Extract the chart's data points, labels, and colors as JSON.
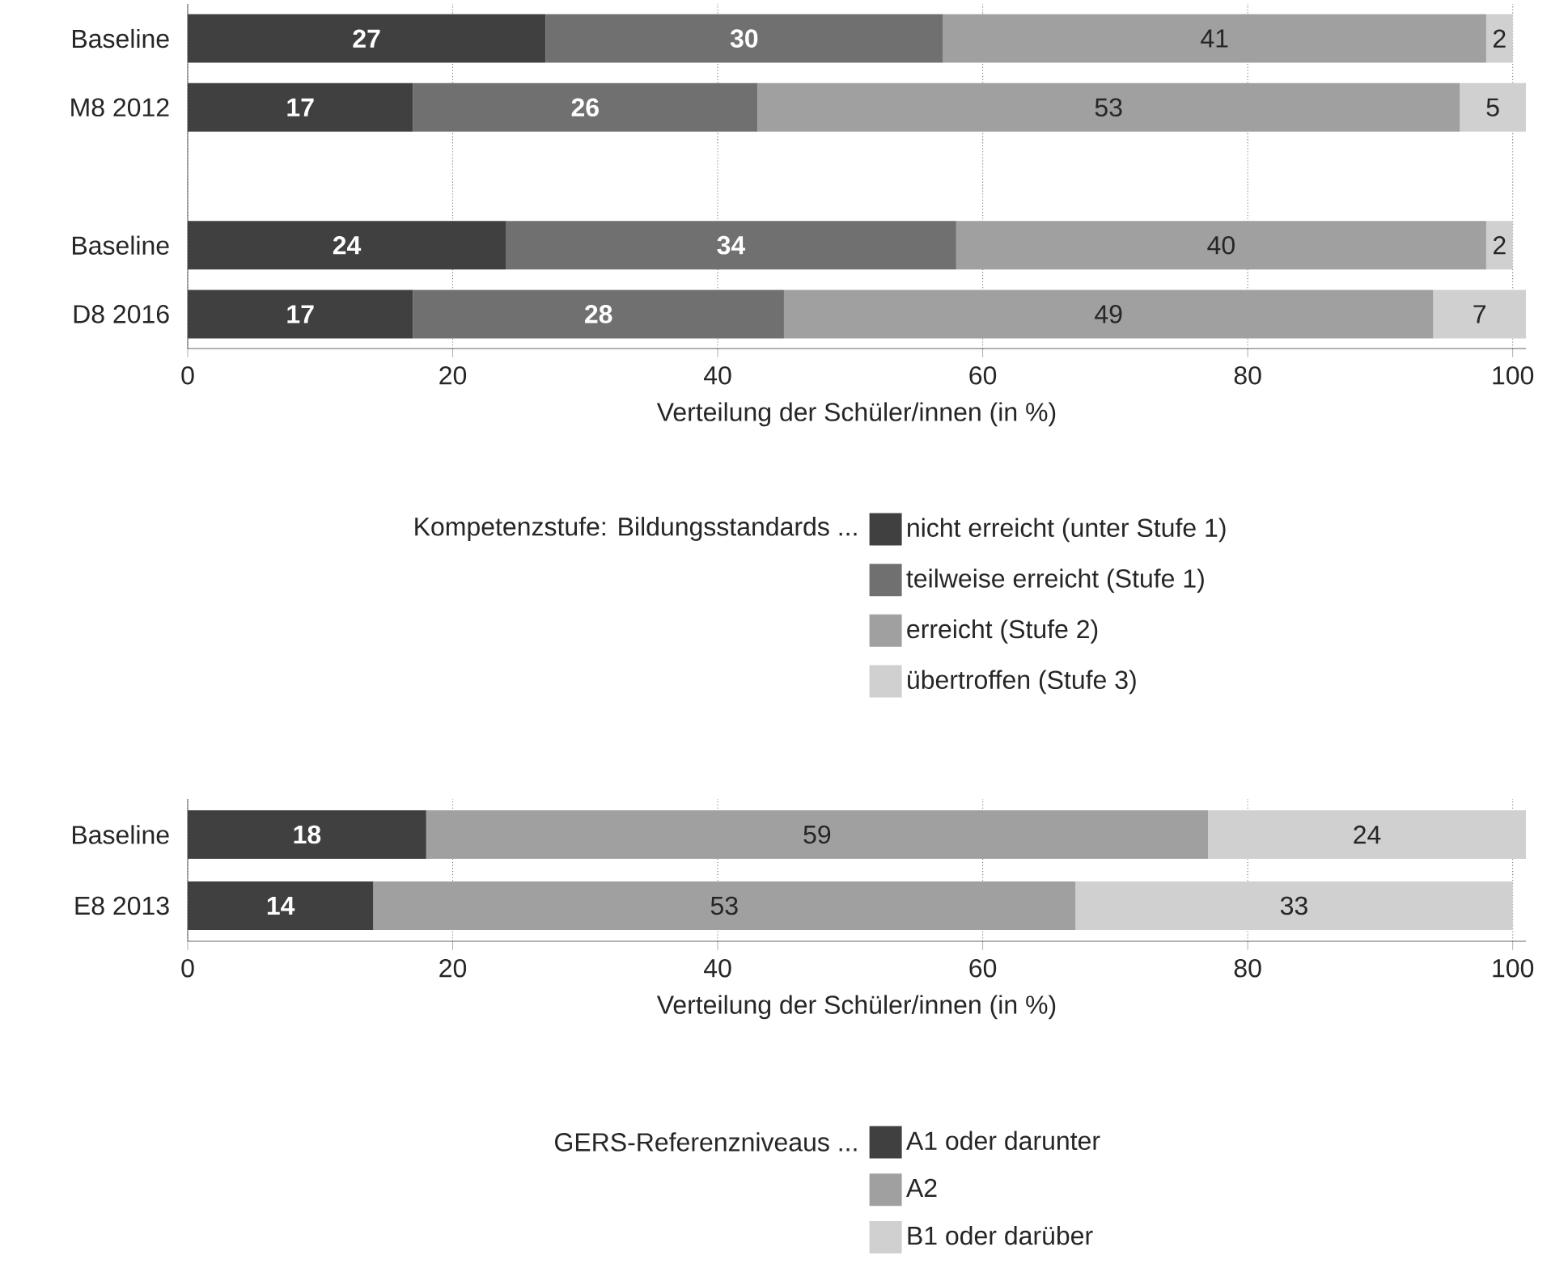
{
  "chart_data": [
    {
      "type": "bar",
      "orientation": "horizontal",
      "stacked": true,
      "categories": [
        "Baseline",
        "M8 2012",
        null,
        "Baseline",
        "D8 2016"
      ],
      "series": [
        {
          "name": "nicht erreicht (unter Stufe 1)",
          "color": "#404040",
          "values": [
            27,
            17,
            null,
            24,
            17
          ]
        },
        {
          "name": "teilweise erreicht (Stufe 1)",
          "color": "#707070",
          "values": [
            30,
            26,
            null,
            34,
            28
          ]
        },
        {
          "name": "erreicht (Stufe 2)",
          "color": "#a0a0a0",
          "values": [
            41,
            53,
            null,
            40,
            49
          ]
        },
        {
          "name": "übertroffen (Stufe 3)",
          "color": "#d0d0d0",
          "values": [
            2,
            5,
            null,
            2,
            7
          ]
        }
      ],
      "xlabel": "Verteilung der Schüler/innen (in %)",
      "xlim": [
        0,
        101
      ],
      "xticks": [
        0,
        20,
        40,
        60,
        80,
        100
      ],
      "grid": "x",
      "data_labels": true,
      "legend": "bottom",
      "legend_title": "Kompetenzstufe: Bildungsstandards ..."
    },
    {
      "type": "bar",
      "orientation": "horizontal",
      "stacked": true,
      "categories": [
        "Baseline",
        "E8 2013"
      ],
      "series": [
        {
          "name": "A1 oder darunter",
          "color": "#404040",
          "values": [
            18,
            14
          ]
        },
        {
          "name": "A2",
          "color": "#a0a0a0",
          "values": [
            59,
            53
          ]
        },
        {
          "name": "B1 oder darüber",
          "color": "#d0d0d0",
          "values": [
            24,
            33
          ]
        }
      ],
      "xlabel": "Verteilung der Schüler/innen (in %)",
      "xlim": [
        0,
        101
      ],
      "xticks": [
        0,
        20,
        40,
        60,
        80,
        100
      ],
      "grid": "x",
      "data_labels": true,
      "legend": "bottom",
      "legend_title": "GERS-Referenzniveaus ..."
    }
  ]
}
